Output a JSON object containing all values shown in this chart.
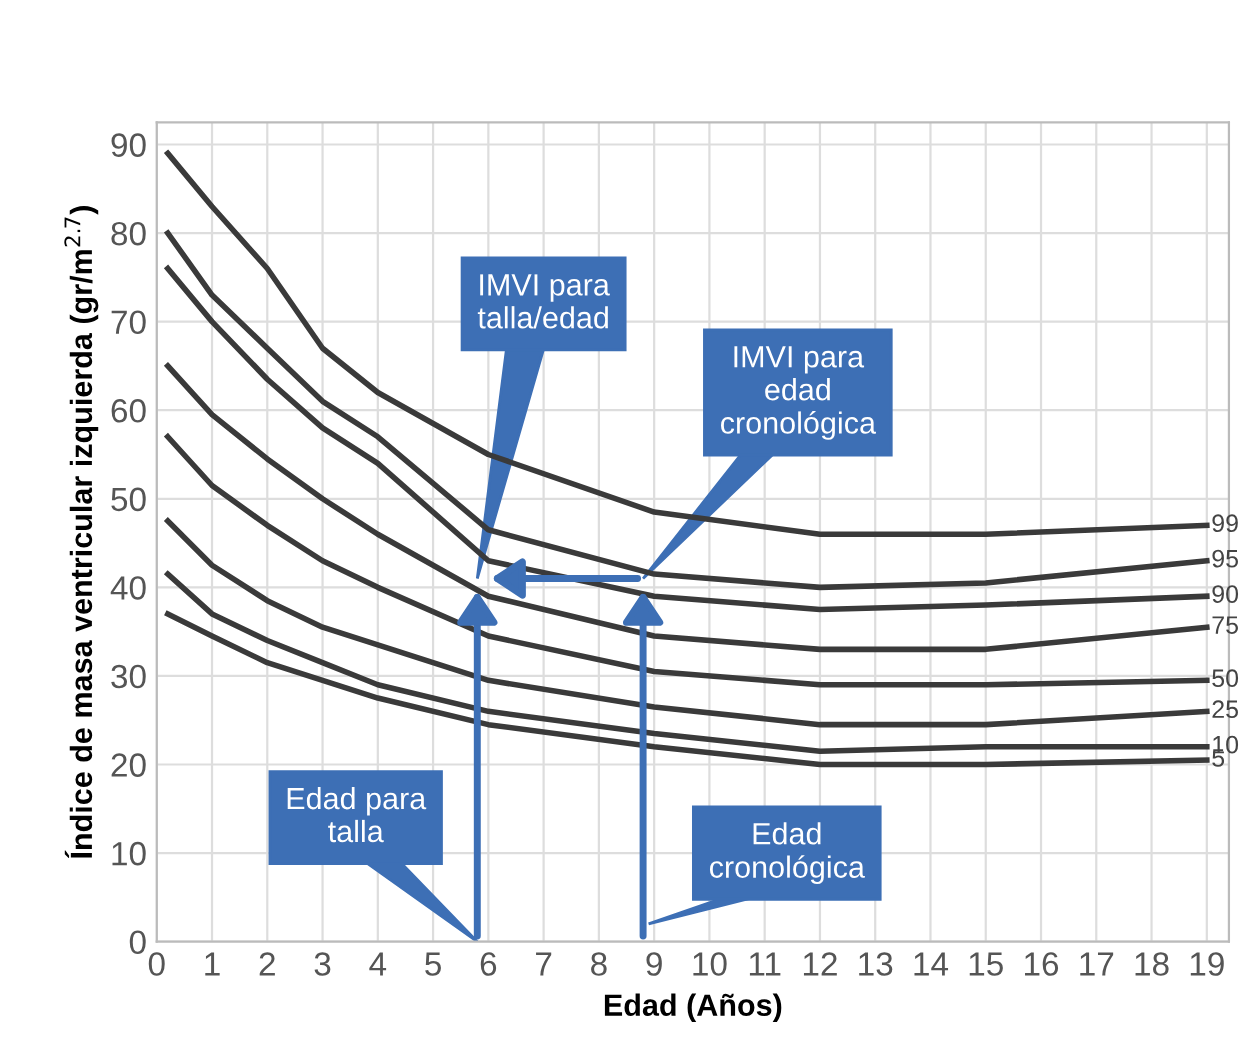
{
  "chart_data": {
    "type": "line",
    "xlabel": "Edad (Años)",
    "ylabel": "Índice de masa ventricular izquierda (gr/m$^{2.7}$)",
    "x": [
      0.2,
      1,
      2,
      3,
      4,
      6,
      9,
      12,
      15,
      19
    ],
    "series": [
      {
        "name": "99",
        "color": "#3a3a3a",
        "values": [
          89,
          83,
          76,
          67,
          62,
          55,
          48.5,
          46,
          46,
          47
        ]
      },
      {
        "name": "95",
        "color": "#3a3a3a",
        "values": [
          80,
          73,
          67,
          61,
          57,
          46.5,
          41.5,
          40,
          40.5,
          43
        ]
      },
      {
        "name": "90",
        "color": "#3a3a3a",
        "values": [
          76,
          70,
          63.5,
          58,
          54,
          43,
          39,
          37.5,
          38,
          39
        ]
      },
      {
        "name": "75",
        "color": "#3a3a3a",
        "values": [
          65,
          59.5,
          54.5,
          50,
          46,
          39,
          34.5,
          33,
          33,
          35.5
        ]
      },
      {
        "name": "50",
        "color": "#3a3a3a",
        "values": [
          57,
          51.5,
          47,
          43,
          40,
          34.5,
          30.5,
          29,
          29,
          29.5
        ]
      },
      {
        "name": "25",
        "color": "#3a3a3a",
        "values": [
          47.5,
          42.5,
          38.5,
          35.5,
          33.5,
          29.5,
          26.5,
          24.5,
          24.5,
          26
        ]
      },
      {
        "name": "10",
        "color": "#3a3a3a",
        "values": [
          41.5,
          37,
          34,
          31.5,
          29,
          26,
          23.5,
          21.5,
          22,
          22
        ]
      },
      {
        "name": "5",
        "color": "#3a3a3a",
        "values": [
          37,
          34.5,
          31.5,
          29.5,
          27.5,
          24.5,
          22,
          20,
          20,
          20.5
        ]
      }
    ],
    "xlim": [
      0,
      19.4
    ],
    "ylim": [
      0,
      92.5
    ],
    "xticks": [
      0,
      1,
      2,
      3,
      4,
      5,
      6,
      7,
      8,
      9,
      10,
      11,
      12,
      13,
      14,
      15,
      16,
      17,
      18,
      19
    ],
    "yticks": [
      0,
      10,
      20,
      30,
      40,
      50,
      60,
      70,
      80,
      90
    ],
    "grid": true,
    "legend": false,
    "marker": "none",
    "line_style": "solid",
    "annotations": [
      "IMVI para\ntalla/edad",
      "IMVI para\nedad\ncronológica",
      "Edad para\ntalla",
      "Edad\ncronológica"
    ]
  }
}
